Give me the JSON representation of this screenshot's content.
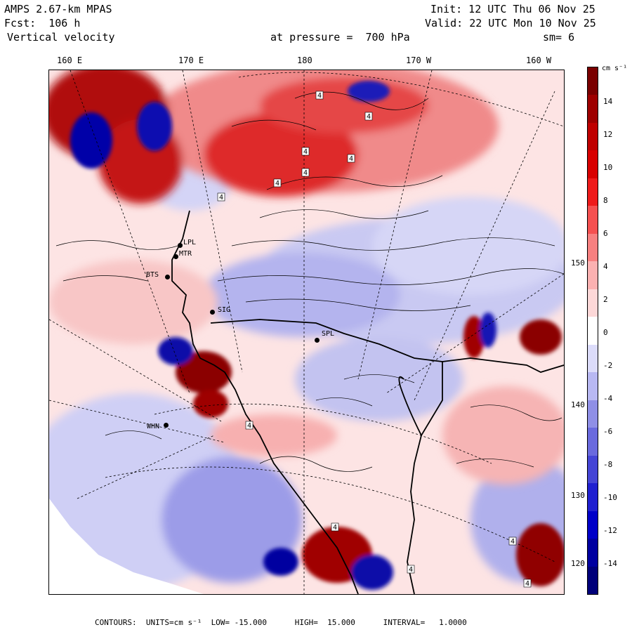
{
  "header": {
    "model": "AMPS 2.67-km MPAS",
    "forecast": "Fcst:  106 h",
    "field": "Vertical velocity",
    "init": "Init: 12 UTC Thu 06 Nov 25",
    "valid": "Valid: 22 UTC Mon 10 Nov 25",
    "pressure": "at pressure =  700 hPa",
    "smoothing": "sm= 6"
  },
  "longitude_ticks": [
    "160 E",
    "170 E",
    "180",
    "170 W",
    "160 W"
  ],
  "latitude_ticks": [
    "150 W",
    "140 W",
    "130 W",
    "120 W"
  ],
  "colorbar": {
    "unit": "cm s⁻¹",
    "ticks": [
      "14",
      "12",
      "10",
      "8",
      "6",
      "4",
      "2",
      "0",
      "-2",
      "-4",
      "-6",
      "-8",
      "-10",
      "-12",
      "-14"
    ],
    "colors": [
      "#7a0000",
      "#9e0000",
      "#bf0000",
      "#d80000",
      "#ee1a1a",
      "#f55050",
      "#f78080",
      "#fbb1b1",
      "#fdd8d8",
      "#ffffff",
      "#dcdcfa",
      "#b8b8f2",
      "#8f8fe6",
      "#6a6ade",
      "#4545d6",
      "#2020d0",
      "#0000c8",
      "#0000a0",
      "#00007a"
    ]
  },
  "stations": [
    "LPL",
    "MTR",
    "BTS",
    "SIG",
    "SPL",
    "WHN"
  ],
  "contour_labels": [
    "4",
    "4",
    "4",
    "4",
    "4",
    "4",
    "4",
    "4",
    "4",
    "4",
    "4",
    "4"
  ],
  "footer": "CONTOURS:  UNITS=cm s⁻¹  LOW= -15.000      HIGH=  15.000      INTERVAL=   1.0000"
}
